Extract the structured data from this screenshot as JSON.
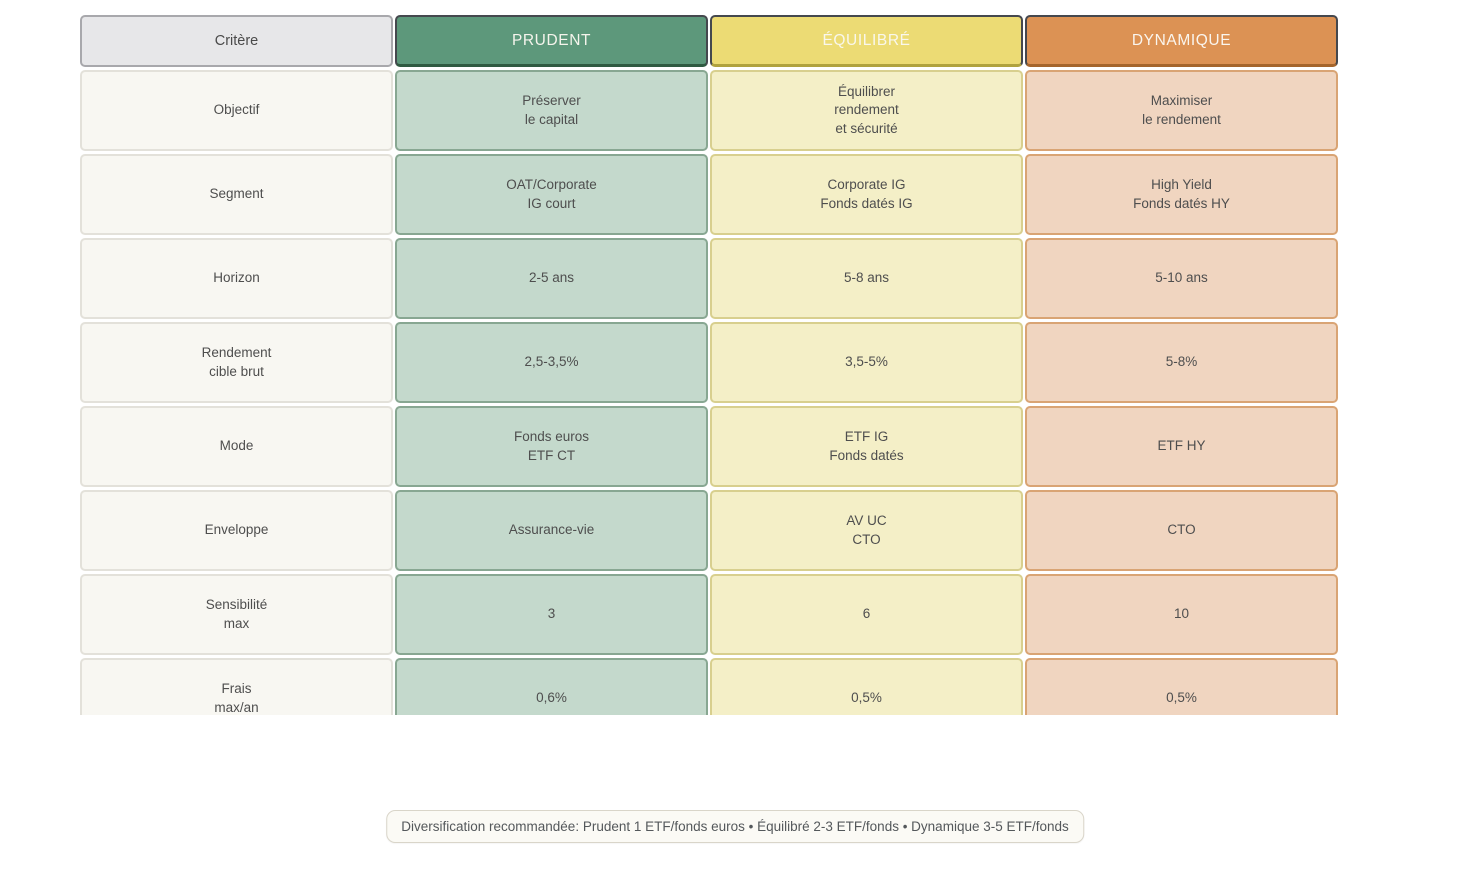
{
  "chart_data": {
    "type": "table",
    "criterion_header": "Critère",
    "columns": [
      {
        "label": "PRUDENT",
        "header_bg": "#5d987b",
        "header_edge": "#45484e",
        "header_edge_bottom": "#2f5a41",
        "header_text": "#f5f4ec",
        "cell_bg": "#c4d9cc",
        "cell_border": "#88a792"
      },
      {
        "label": "ÉQUILIBRÉ",
        "header_bg": "#ecdb74",
        "header_edge": "#45484e",
        "header_edge_bottom": "#b0a23e",
        "header_text": "#f9f7ec",
        "cell_bg": "#f4efc7",
        "cell_border": "#d8cf8e"
      },
      {
        "label": "DYNAMIQUE",
        "header_bg": "#dc9254",
        "header_edge": "#45484e",
        "header_edge_bottom": "#a5652c",
        "header_text": "#faf5ee",
        "cell_bg": "#f0d5c0",
        "cell_border": "#d9a474"
      }
    ],
    "rows": [
      {
        "label": "Objectif",
        "values": [
          "Préserver\nle capital",
          "Équilibrer\nrendement\net sécurité",
          "Maximiser\nle rendement"
        ]
      },
      {
        "label": "Segment",
        "values": [
          "OAT/Corporate\nIG court",
          "Corporate IG\nFonds datés IG",
          "High Yield\nFonds datés HY"
        ]
      },
      {
        "label": "Horizon",
        "values": [
          "2-5 ans",
          "5-8 ans",
          "5-10 ans"
        ]
      },
      {
        "label": "Rendement\ncible brut",
        "values": [
          "2,5-3,5%",
          "3,5-5%",
          "5-8%"
        ]
      },
      {
        "label": "Mode",
        "values": [
          "Fonds euros\nETF CT",
          "ETF IG\nFonds datés",
          "ETF HY"
        ]
      },
      {
        "label": "Enveloppe",
        "values": [
          "Assurance-vie",
          "AV UC\nCTO",
          "CTO"
        ]
      },
      {
        "label": "Sensibilité\nmax",
        "values": [
          "3",
          "6",
          "10"
        ]
      },
      {
        "label": "Frais\nmax/an",
        "values": [
          "0,6%",
          "0,5%",
          "0,5%"
        ]
      }
    ],
    "footnote": "Diversification recommandée: Prudent 1 ETF/fonds euros • Équilibré 2-3 ETF/fonds • Dynamique 3-5 ETF/fonds"
  },
  "colors": {
    "criterion_header_bg": "#e7e7e9",
    "criterion_header_border": "#a8a8ac",
    "label_bg": "#f8f7f2",
    "label_border": "#e3e1da",
    "body_text": "#4e4e4e",
    "page_bg": "#ffffff"
  }
}
